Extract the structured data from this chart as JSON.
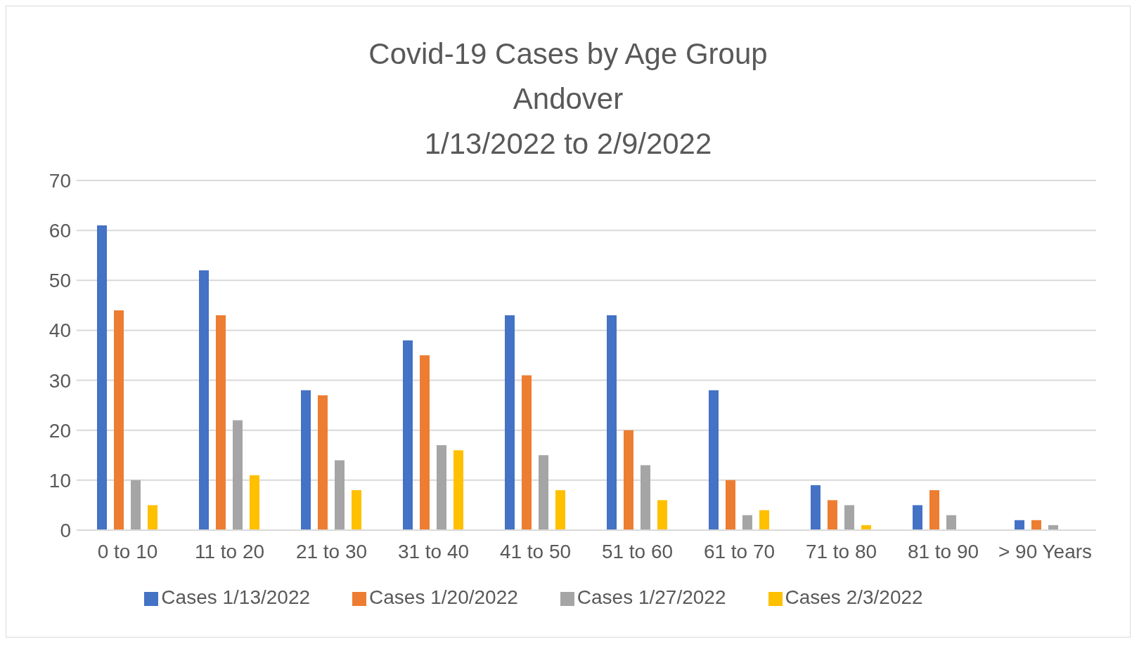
{
  "chart_data": {
    "type": "bar",
    "title": "Covid-19 Cases by Age Group\nAndover\n1/13/2022 to 2/9/2022",
    "categories": [
      "0 to 10",
      "11 to 20",
      "21 to 30",
      "31 to 40",
      "41 to 50",
      "51 to 60",
      "61 to 70",
      "71 to 80",
      "81 to 90",
      "> 90 Years"
    ],
    "series": [
      {
        "name": "Cases 1/13/2022",
        "color": "#4472c4",
        "values": [
          61,
          52,
          28,
          38,
          43,
          43,
          28,
          9,
          5,
          2
        ]
      },
      {
        "name": "Cases 1/20/2022",
        "color": "#ed7d31",
        "values": [
          44,
          43,
          27,
          35,
          31,
          20,
          10,
          6,
          8,
          2
        ]
      },
      {
        "name": "Cases 1/27/2022",
        "color": "#a5a5a5",
        "values": [
          10,
          22,
          14,
          17,
          15,
          13,
          3,
          5,
          3,
          1
        ]
      },
      {
        "name": "Cases 2/3/2022",
        "color": "#ffc000",
        "values": [
          5,
          11,
          8,
          16,
          8,
          6,
          4,
          1,
          0,
          0
        ]
      }
    ],
    "ylim": [
      0,
      70
    ],
    "yticks": [
      0,
      10,
      20,
      30,
      40,
      50,
      60,
      70
    ],
    "grid": "y",
    "legend": "bottom"
  }
}
